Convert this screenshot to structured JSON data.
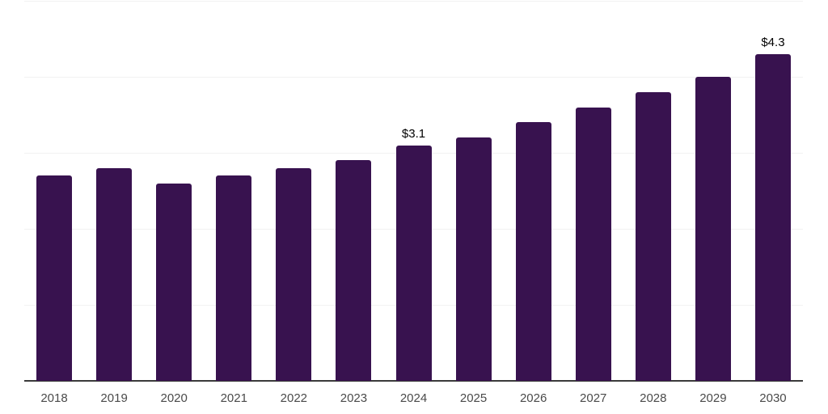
{
  "chart_data": {
    "type": "bar",
    "title": "",
    "xlabel": "",
    "ylabel": "",
    "categories": [
      "2018",
      "2019",
      "2020",
      "2021",
      "2022",
      "2023",
      "2024",
      "2025",
      "2026",
      "2027",
      "2028",
      "2029",
      "2030"
    ],
    "values": [
      2.7,
      2.8,
      2.6,
      2.7,
      2.8,
      2.9,
      3.1,
      3.2,
      3.4,
      3.6,
      3.8,
      4.0,
      4.3
    ],
    "data_labels": {
      "2024": "$3.1",
      "2030": "$4.3"
    },
    "ylim": [
      0,
      5
    ],
    "grid": "horizontal",
    "gridline_values": [
      1,
      2,
      3,
      4,
      5
    ],
    "legend": "none",
    "colors": {
      "bar": "#38124f",
      "axis_line": "#3a3a3a",
      "gridline": "#f2f2f2",
      "data_label": "#000000",
      "tick_label": "#4a4a4a",
      "background": "#ffffff"
    }
  }
}
